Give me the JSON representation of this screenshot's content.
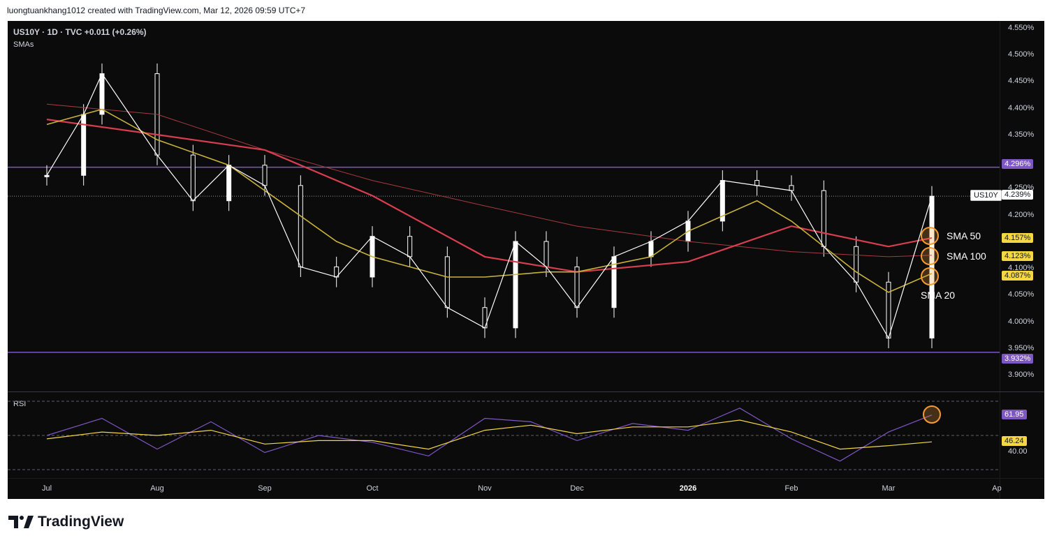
{
  "header": {
    "text": "luongtuankhang1012 created with TradingView.com, Mar 12, 2026 09:59 UTC+7"
  },
  "legend": {
    "main": "US10Y · 1D · TVC  +0.011 (+0.26%)",
    "sub": "SMAs",
    "rsi": "RSI"
  },
  "colors": {
    "background": "#0b0b0c",
    "candle": "#ffffff",
    "level_line": "#7e57c2",
    "sma_20": "#c9b33a",
    "sma_50": "#d83e4e",
    "sma_100": "#a83a3e",
    "rsi_line": "#7e57c2",
    "rsi_ma": "#f5d742",
    "highlight": "#f39c32"
  },
  "price_axis": {
    "ticks": [
      "4.550%",
      "4.500%",
      "4.450%",
      "4.400%",
      "4.350%",
      "4.250%",
      "4.200%",
      "4.100%",
      "4.050%",
      "4.000%",
      "3.950%",
      "3.900%"
    ]
  },
  "rsi_axis": {
    "ticks": [
      "40.00"
    ]
  },
  "badges": {
    "upper_level": "4.296%",
    "lower_level": "3.932%",
    "symbol": "US10Y",
    "last_price": "4.239%",
    "sma50": "4.157%",
    "sma100": "4.123%",
    "sma20": "4.087%",
    "rsi_value": "61.95",
    "rsi_ma_value": "46.24"
  },
  "annotations": {
    "sma50": "SMA 50",
    "sma100": "SMA 100",
    "sma20": "SMA 20"
  },
  "xaxis": {
    "labels": [
      "Jul",
      "Aug",
      "Sep",
      "Oct",
      "Nov",
      "Dec",
      "2026",
      "Feb",
      "Mar",
      "Ap"
    ]
  },
  "logo": {
    "text": "TradingView"
  },
  "chart_data": {
    "type": "line",
    "symbol": "US10Y",
    "timeframe": "1D",
    "price_ylim": [
      3.87,
      4.57
    ],
    "horizontal_levels": [
      4.296,
      3.932
    ],
    "last_price": 4.239,
    "series": [
      {
        "name": "US10Y",
        "x": [
          "Jul",
          "Jul 10",
          "Jul 15",
          "Aug",
          "Aug 10",
          "Aug 20",
          "Sep",
          "Sep 10",
          "Sep 20",
          "Oct",
          "Oct 10",
          "Oct 20",
          "Nov",
          "Nov 10",
          "Nov 20",
          "Dec",
          "Dec 10",
          "Dec 20",
          "2026",
          "Jan 10",
          "Jan 20",
          "Feb",
          "Feb 10",
          "Feb 20",
          "Mar",
          "Mar 12"
        ],
        "values": [
          4.28,
          4.4,
          4.48,
          4.32,
          4.23,
          4.3,
          4.26,
          4.1,
          4.08,
          4.16,
          4.12,
          4.02,
          3.98,
          4.15,
          4.1,
          4.02,
          4.12,
          4.15,
          4.19,
          4.27,
          4.26,
          4.25,
          4.14,
          4.07,
          3.96,
          4.239
        ]
      },
      {
        "name": "SMA 20",
        "x": [
          "Jul",
          "Jul 15",
          "Aug",
          "Aug 20",
          "Sep",
          "Sep 20",
          "Oct",
          "Oct 20",
          "Nov",
          "Nov 20",
          "Dec",
          "Dec 20",
          "2026",
          "Jan 20",
          "Feb",
          "Feb 20",
          "Mar",
          "Mar 12"
        ],
        "values": [
          4.38,
          4.41,
          4.35,
          4.3,
          4.25,
          4.15,
          4.12,
          4.08,
          4.08,
          4.09,
          4.09,
          4.12,
          4.17,
          4.23,
          4.19,
          4.09,
          4.05,
          4.087
        ]
      },
      {
        "name": "SMA 50",
        "x": [
          "Jul",
          "Aug",
          "Sep",
          "Oct",
          "Nov",
          "Dec",
          "2026",
          "Feb",
          "Mar",
          "Mar 12"
        ],
        "values": [
          4.39,
          4.36,
          4.33,
          4.24,
          4.12,
          4.09,
          4.11,
          4.18,
          4.14,
          4.157
        ]
      },
      {
        "name": "SMA 100",
        "x": [
          "Jul",
          "Aug",
          "Sep",
          "Oct",
          "Nov",
          "Dec",
          "2026",
          "Feb",
          "Mar",
          "Mar 12"
        ],
        "values": [
          4.42,
          4.4,
          4.33,
          4.27,
          4.22,
          4.18,
          4.15,
          4.13,
          4.12,
          4.123
        ]
      }
    ],
    "rsi": {
      "ylim": [
        30,
        70
      ],
      "levels": [
        40.0
      ],
      "x": [
        "Jul",
        "Jul 15",
        "Aug",
        "Aug 15",
        "Sep",
        "Sep 15",
        "Oct",
        "Oct 15",
        "Nov",
        "Nov 15",
        "Dec",
        "Dec 15",
        "2026",
        "Jan 15",
        "Feb",
        "Feb 15",
        "Mar",
        "Mar 12"
      ],
      "values": [
        50,
        60,
        42,
        58,
        40,
        50,
        46,
        38,
        60,
        58,
        47,
        57,
        53,
        66,
        48,
        35,
        52,
        61.95
      ],
      "ma": [
        48,
        52,
        50,
        53,
        45,
        47,
        47,
        42,
        53,
        56,
        51,
        55,
        55,
        59,
        52,
        42,
        44,
        46.24
      ]
    }
  }
}
